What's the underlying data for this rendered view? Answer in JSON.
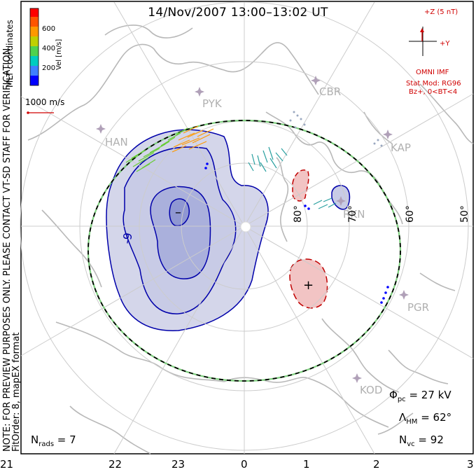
{
  "title": "14/Nov/2007 13:00–13:02 UT",
  "coordinates": "MLT coordinates",
  "velocity_colorbar": {
    "label": "Vel [m/s]",
    "ticks": [
      "600",
      "400",
      "200"
    ],
    "colors": [
      "#0000ff",
      "#3f7fff",
      "#00ccc0",
      "#4fd24f",
      "#c0d000",
      "#ff9900",
      "#ff5500",
      "#ff0000"
    ]
  },
  "scale_vector": "1000 m/s",
  "imf": {
    "magnitude_label": "+Z (5 nT)",
    "y_label": "+Y",
    "source": "OMNI IMF",
    "model_line1": "Stat Mod: RG96",
    "model_line2": "Bz+, 0<BT<4"
  },
  "notes": {
    "verification": "NOTE: FOR PREVIEW PURPOSES ONLY. PLEASE CONTACT VT-SD STAFF FOR VERIFICATION.",
    "fit_order": "FitOrder: 8, mapEX format"
  },
  "mlt_ticks": [
    "21",
    "22",
    "23",
    "0",
    "1",
    "2",
    "3"
  ],
  "latitude_labels": [
    "80°",
    "70°",
    "60°",
    "50°"
  ],
  "stations": [
    "HAN",
    "PYK",
    "CBR",
    "KAP",
    "RKN",
    "PGR",
    "KOD"
  ],
  "potential_extrema": {
    "min": "–",
    "max": "+"
  },
  "contour_labels": [
    "-9"
  ],
  "stats": {
    "phi_pc": "27 kV",
    "lambda_hm": "62°",
    "n_vc": "92",
    "n_rads": "7"
  },
  "colors": {
    "negative_contour": "#0000aa",
    "negative_fill": "#c8cbe6",
    "positive_contour": "#c00000",
    "positive_fill": "#f2c4c4",
    "coastline": "#b8b8b8",
    "grid": "#cccccc",
    "station": "#b0a0b8",
    "hmb_dash": "#7fd07f"
  }
}
